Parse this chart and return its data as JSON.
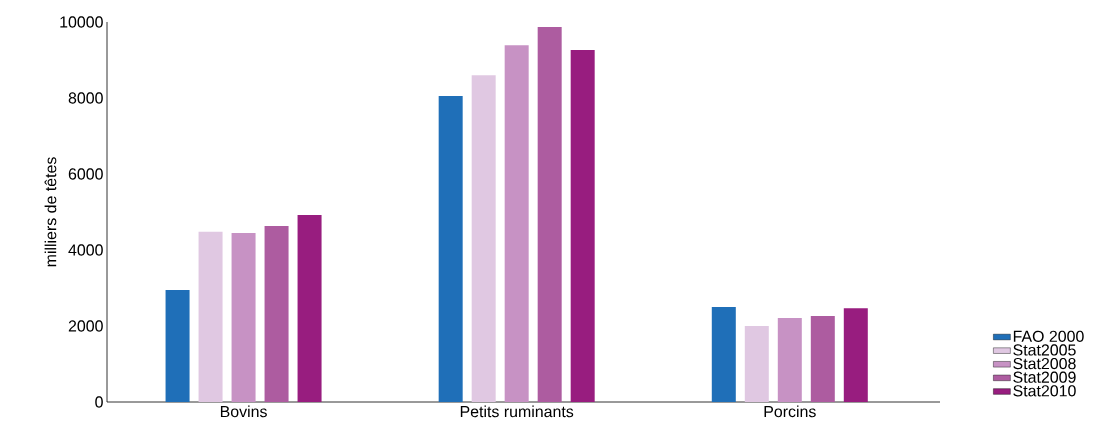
{
  "chart_data": {
    "type": "bar",
    "ylabel": "milliers de têtes",
    "categories": [
      "Bovins",
      "Petits ruminants",
      "Porcins"
    ],
    "series": [
      {
        "name": "FAO 2000",
        "color": "#1f6fb8",
        "values": [
          2950,
          8050,
          2500
        ]
      },
      {
        "name": "Stat2005",
        "color": "#e0c8e2",
        "values": [
          4480,
          8600,
          2000
        ]
      },
      {
        "name": "Stat2008",
        "color": "#c792c4",
        "values": [
          4450,
          9390,
          2210
        ]
      },
      {
        "name": "Stat2009",
        "color": "#ad5ca0",
        "values": [
          4630,
          9870,
          2260
        ]
      },
      {
        "name": "Stat2010",
        "color": "#981d7f",
        "values": [
          4920,
          9260,
          2470
        ]
      }
    ],
    "ylim": [
      0,
      10000
    ],
    "yticks": [
      0,
      2000,
      4000,
      6000,
      8000,
      10000
    ],
    "grid": false,
    "legend": "bottom right"
  }
}
